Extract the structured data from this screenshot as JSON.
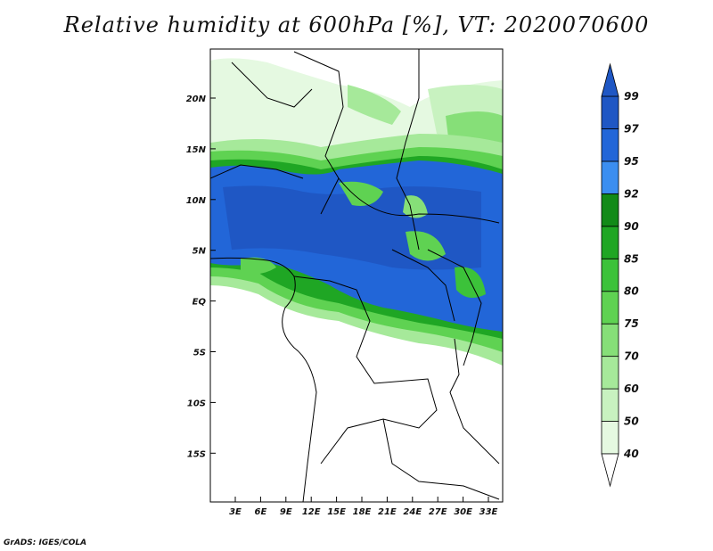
{
  "title": "Relative humidity at 600hPa [%], VT: 2020070600",
  "credit": "GrADS: IGES/COLA",
  "map": {
    "lon_range": [
      0,
      35
    ],
    "lat_range": [
      -20,
      25
    ],
    "lat_ticks": [
      "20N",
      "15N",
      "10N",
      "5N",
      "EQ",
      "5S",
      "10S",
      "15S"
    ],
    "lon_ticks": [
      "3E",
      "6E",
      "9E",
      "12E",
      "15E",
      "18E",
      "21E",
      "24E",
      "27E",
      "30E",
      "33E"
    ]
  },
  "colorbar": {
    "levels": [
      "40",
      "50",
      "60",
      "70",
      "75",
      "80",
      "85",
      "90",
      "92",
      "95",
      "97",
      "99"
    ],
    "colors": [
      "#ffffff",
      "#e5f9e1",
      "#c8f2c0",
      "#a6e99a",
      "#86df78",
      "#5fd252",
      "#3cc23a",
      "#1fa624",
      "#128a18",
      "#3b8ef0",
      "#2266d8",
      "#1f57c4",
      "#1745a8"
    ],
    "extend_low_color": "#ffffff",
    "extend_high_color": "#1f57c4"
  }
}
